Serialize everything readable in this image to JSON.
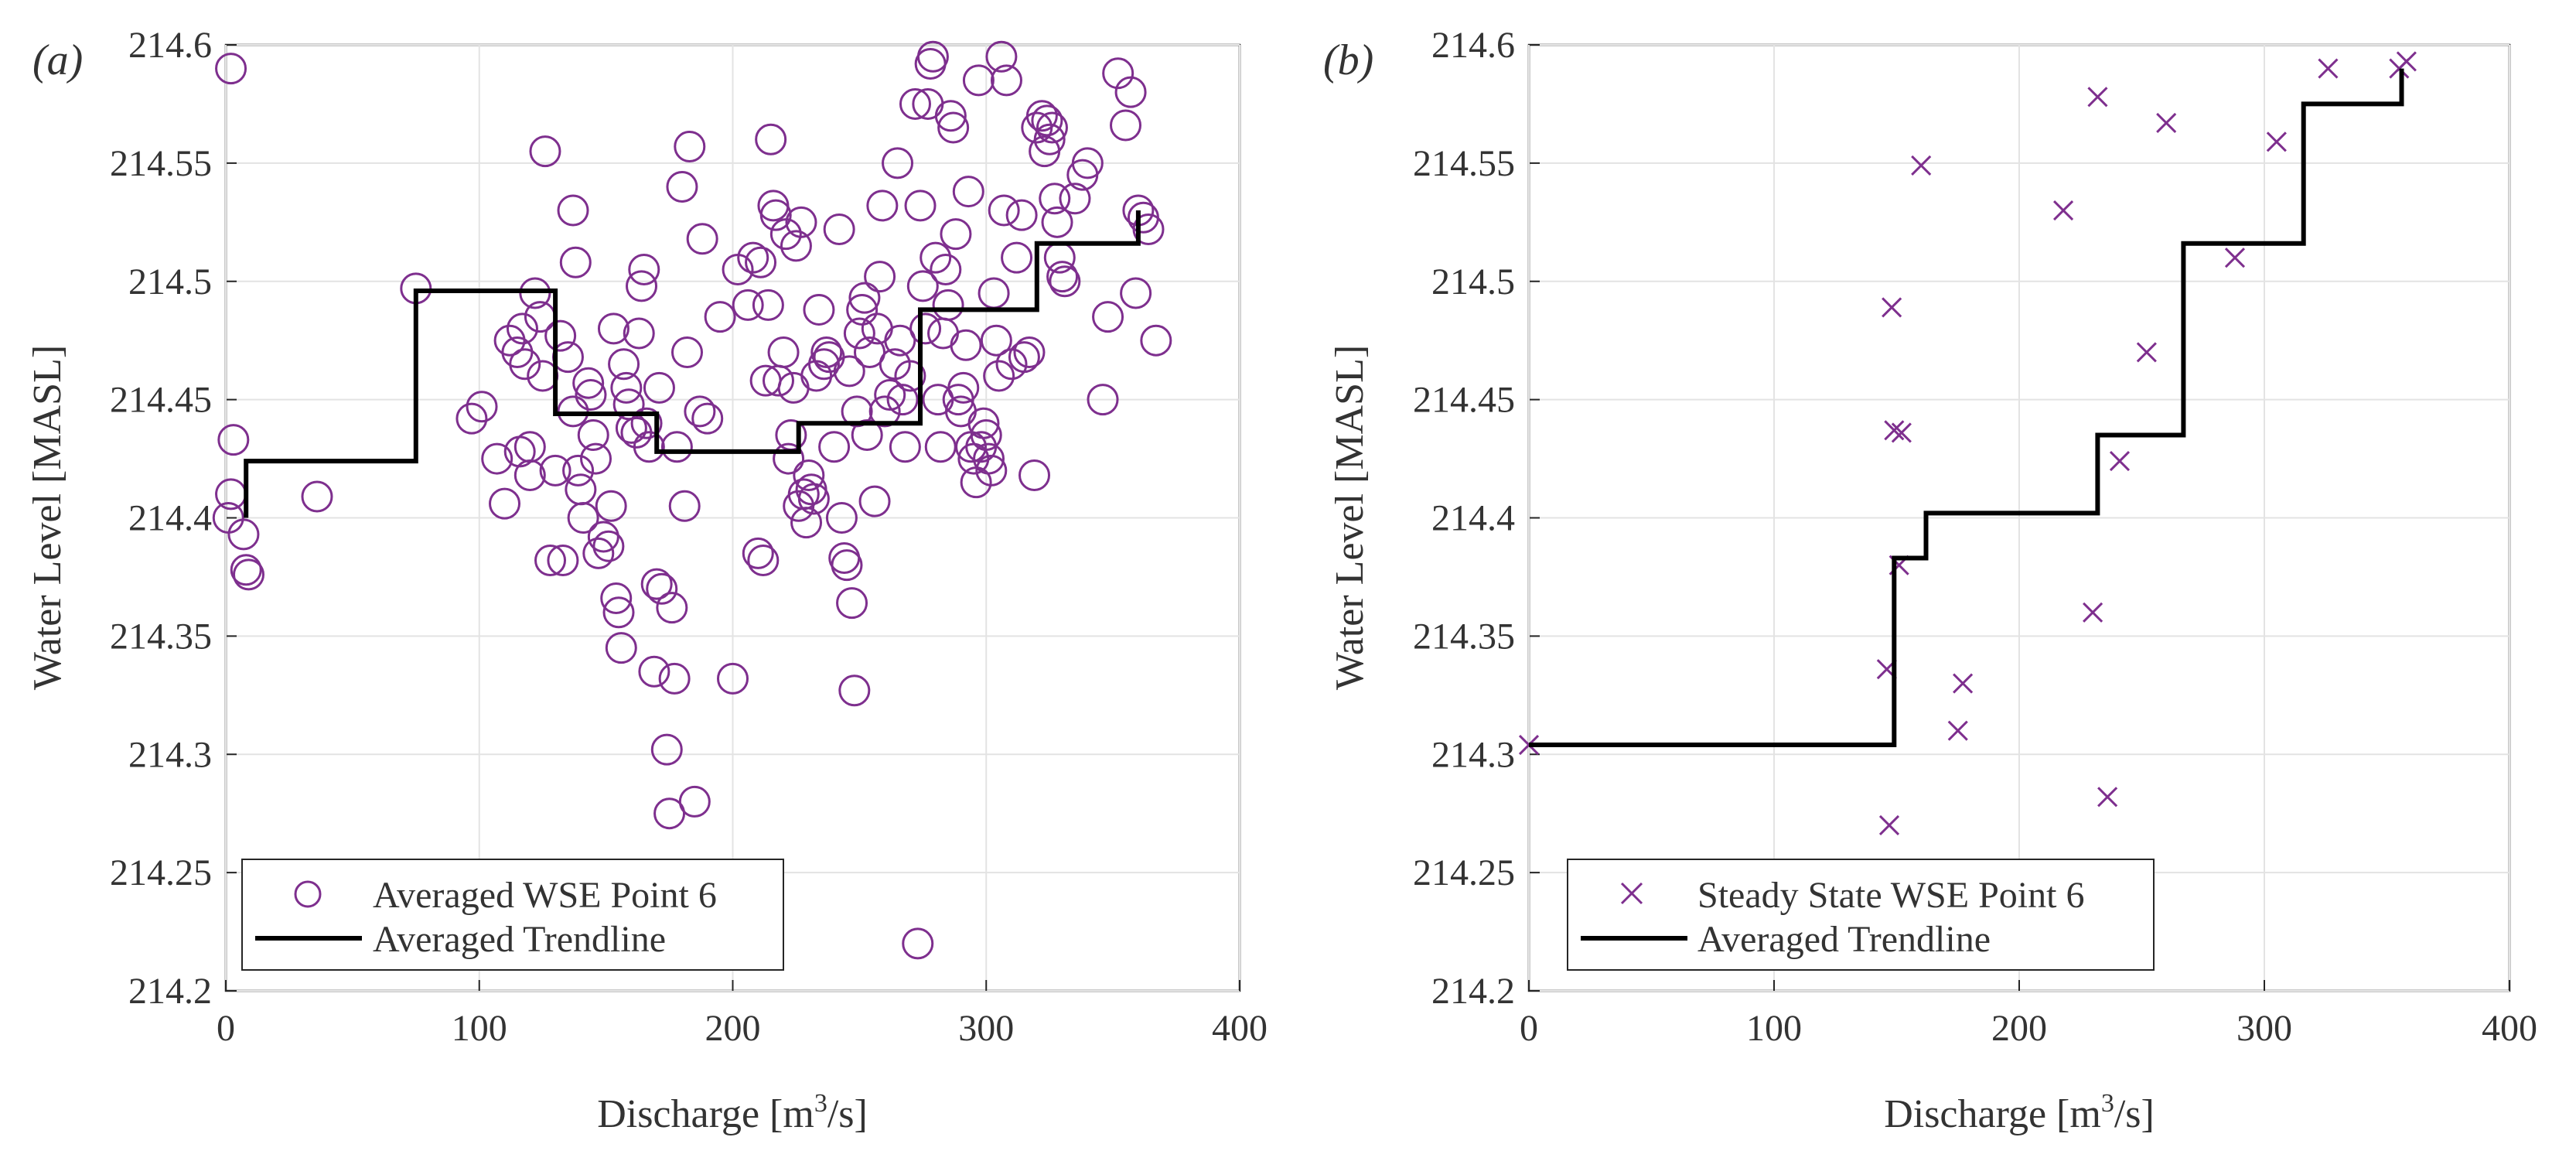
{
  "figure": {
    "panel_a_label": "(a)",
    "panel_b_label": "(b)"
  },
  "chart_data": [
    {
      "type": "scatter",
      "panel": "(a)",
      "xlabel_main": "Discharge [m",
      "xlabel_sup": "3",
      "xlabel_end": "/s]",
      "ylabel": "Water Level [MASL]",
      "xlim": [
        0,
        400
      ],
      "ylim": [
        214.2,
        214.6
      ],
      "xticks": [
        "0",
        "100",
        "200",
        "300",
        "400"
      ],
      "yticks": [
        "214.2",
        "214.25",
        "214.3",
        "214.35",
        "214.4",
        "214.45",
        "214.5",
        "214.55",
        "214.6"
      ],
      "grid": true,
      "legend_position": "bottom-left",
      "marker_color": "#7E2F8E",
      "line_color": "#000000",
      "series": [
        {
          "name": "Averaged WSE Point 6",
          "marker": "circle",
          "points": [
            [
              2,
              214.59
            ],
            [
              2,
              214.41
            ],
            [
              3,
              214.433
            ],
            [
              1,
              214.4
            ],
            [
              7,
              214.393
            ],
            [
              8,
              214.378
            ],
            [
              9,
              214.376
            ],
            [
              36,
              214.409
            ],
            [
              75,
              214.497
            ],
            [
              97,
              214.442
            ],
            [
              101,
              214.447
            ],
            [
              107,
              214.425
            ],
            [
              110,
              214.406
            ],
            [
              112,
              214.475
            ],
            [
              115,
              214.47
            ],
            [
              116,
              214.428
            ],
            [
              117,
              214.48
            ],
            [
              118,
              214.465
            ],
            [
              120,
              214.43
            ],
            [
              120,
              214.418
            ],
            [
              122,
              214.495
            ],
            [
              124,
              214.485
            ],
            [
              125,
              214.46
            ],
            [
              126,
              214.555
            ],
            [
              128,
              214.382
            ],
            [
              130,
              214.42
            ],
            [
              132,
              214.477
            ],
            [
              133,
              214.382
            ],
            [
              135,
              214.468
            ],
            [
              137,
              214.445
            ],
            [
              137,
              214.53
            ],
            [
              138,
              214.508
            ],
            [
              139,
              214.42
            ],
            [
              140,
              214.412
            ],
            [
              141,
              214.4
            ],
            [
              143,
              214.457
            ],
            [
              144,
              214.452
            ],
            [
              145,
              214.435
            ],
            [
              146,
              214.425
            ],
            [
              147,
              214.385
            ],
            [
              149,
              214.392
            ],
            [
              151,
              214.388
            ],
            [
              152,
              214.405
            ],
            [
              153,
              214.48
            ],
            [
              154,
              214.366
            ],
            [
              155,
              214.36
            ],
            [
              156,
              214.345
            ],
            [
              157,
              214.465
            ],
            [
              158,
              214.455
            ],
            [
              159,
              214.448
            ],
            [
              160,
              214.438
            ],
            [
              162,
              214.436
            ],
            [
              163,
              214.478
            ],
            [
              164,
              214.498
            ],
            [
              165,
              214.505
            ],
            [
              166,
              214.44
            ],
            [
              167,
              214.43
            ],
            [
              169,
              214.335
            ],
            [
              170,
              214.372
            ],
            [
              171,
              214.455
            ],
            [
              172,
              214.37
            ],
            [
              174,
              214.302
            ],
            [
              175,
              214.275
            ],
            [
              176,
              214.362
            ],
            [
              177,
              214.332
            ],
            [
              178,
              214.43
            ],
            [
              180,
              214.54
            ],
            [
              181,
              214.405
            ],
            [
              182,
              214.47
            ],
            [
              183,
              214.557
            ],
            [
              185,
              214.28
            ],
            [
              187,
              214.445
            ],
            [
              188,
              214.518
            ],
            [
              190,
              214.442
            ],
            [
              195,
              214.485
            ],
            [
              200,
              214.332
            ],
            [
              202,
              214.505
            ],
            [
              206,
              214.49
            ],
            [
              208,
              214.51
            ],
            [
              210,
              214.385
            ],
            [
              211,
              214.508
            ],
            [
              212,
              214.382
            ],
            [
              213,
              214.458
            ],
            [
              214,
              214.49
            ],
            [
              215,
              214.56
            ],
            [
              216,
              214.532
            ],
            [
              217,
              214.528
            ],
            [
              218,
              214.458
            ],
            [
              220,
              214.47
            ],
            [
              221,
              214.52
            ],
            [
              222,
              214.425
            ],
            [
              223,
              214.435
            ],
            [
              224,
              214.455
            ],
            [
              225,
              214.515
            ],
            [
              226,
              214.405
            ],
            [
              227,
              214.525
            ],
            [
              228,
              214.41
            ],
            [
              229,
              214.398
            ],
            [
              230,
              214.418
            ],
            [
              231,
              214.412
            ],
            [
              232,
              214.408
            ],
            [
              233,
              214.46
            ],
            [
              234,
              214.488
            ],
            [
              236,
              214.465
            ],
            [
              237,
              214.47
            ],
            [
              238,
              214.468
            ],
            [
              240,
              214.43
            ],
            [
              242,
              214.522
            ],
            [
              243,
              214.4
            ],
            [
              244,
              214.383
            ],
            [
              245,
              214.38
            ],
            [
              246,
              214.462
            ],
            [
              247,
              214.364
            ],
            [
              248,
              214.327
            ],
            [
              249,
              214.445
            ],
            [
              250,
              214.478
            ],
            [
              251,
              214.488
            ],
            [
              252,
              214.493
            ],
            [
              253,
              214.435
            ],
            [
              254,
              214.47
            ],
            [
              256,
              214.407
            ],
            [
              257,
              214.48
            ],
            [
              258,
              214.502
            ],
            [
              259,
              214.532
            ],
            [
              260,
              214.445
            ],
            [
              262,
              214.452
            ],
            [
              264,
              214.465
            ],
            [
              265,
              214.55
            ],
            [
              266,
              214.475
            ],
            [
              267,
              214.45
            ],
            [
              268,
              214.43
            ],
            [
              270,
              214.46
            ],
            [
              272,
              214.575
            ],
            [
              273,
              214.22
            ],
            [
              274,
              214.532
            ],
            [
              275,
              214.498
            ],
            [
              276,
              214.48
            ],
            [
              277,
              214.575
            ],
            [
              278,
              214.592
            ],
            [
              279,
              214.595
            ],
            [
              280,
              214.51
            ],
            [
              281,
              214.45
            ],
            [
              282,
              214.43
            ],
            [
              283,
              214.478
            ],
            [
              284,
              214.505
            ],
            [
              285,
              214.49
            ],
            [
              286,
              214.57
            ],
            [
              287,
              214.565
            ],
            [
              288,
              214.52
            ],
            [
              289,
              214.45
            ],
            [
              290,
              214.445
            ],
            [
              291,
              214.455
            ],
            [
              292,
              214.473
            ],
            [
              293,
              214.538
            ],
            [
              294,
              214.43
            ],
            [
              295,
              214.425
            ],
            [
              296,
              214.415
            ],
            [
              297,
              214.585
            ],
            [
              298,
              214.43
            ],
            [
              299,
              214.44
            ],
            [
              300,
              214.435
            ],
            [
              301,
              214.425
            ],
            [
              302,
              214.42
            ],
            [
              303,
              214.495
            ],
            [
              304,
              214.475
            ],
            [
              305,
              214.46
            ],
            [
              306,
              214.595
            ],
            [
              307,
              214.53
            ],
            [
              308,
              214.585
            ],
            [
              310,
              214.465
            ],
            [
              312,
              214.51
            ],
            [
              314,
              214.528
            ],
            [
              315,
              214.468
            ],
            [
              317,
              214.47
            ],
            [
              319,
              214.418
            ],
            [
              320,
              214.565
            ],
            [
              322,
              214.57
            ],
            [
              323,
              214.555
            ],
            [
              324,
              214.568
            ],
            [
              325,
              214.56
            ],
            [
              326,
              214.565
            ],
            [
              327,
              214.535
            ],
            [
              328,
              214.525
            ],
            [
              329,
              214.51
            ],
            [
              330,
              214.502
            ],
            [
              331,
              214.5
            ],
            [
              335,
              214.535
            ],
            [
              338,
              214.545
            ],
            [
              340,
              214.55
            ],
            [
              346,
              214.45
            ],
            [
              348,
              214.485
            ],
            [
              352,
              214.588
            ],
            [
              355,
              214.566
            ],
            [
              357,
              214.58
            ],
            [
              359,
              214.495
            ],
            [
              360,
              214.53
            ],
            [
              362,
              214.527
            ],
            [
              364,
              214.522
            ],
            [
              367,
              214.475
            ]
          ]
        },
        {
          "name": "Averaged Trendline",
          "marker": "line",
          "points": [
            [
              8,
              214.4
            ],
            [
              8,
              214.424
            ],
            [
              75,
              214.424
            ],
            [
              75,
              214.496
            ],
            [
              130,
              214.496
            ],
            [
              130,
              214.444
            ],
            [
              170,
              214.444
            ],
            [
              170,
              214.428
            ],
            [
              226,
              214.428
            ],
            [
              226,
              214.44
            ],
            [
              274,
              214.44
            ],
            [
              274,
              214.488
            ],
            [
              320,
              214.488
            ],
            [
              320,
              214.516
            ],
            [
              360,
              214.516
            ],
            [
              360,
              214.53
            ]
          ]
        }
      ]
    },
    {
      "type": "scatter",
      "panel": "(b)",
      "xlabel_main": "Discharge [m",
      "xlabel_sup": "3",
      "xlabel_end": "/s]",
      "ylabel": "Water Level [MASL]",
      "xlim": [
        0,
        400
      ],
      "ylim": [
        214.2,
        214.6
      ],
      "xticks": [
        "0",
        "100",
        "200",
        "300",
        "400"
      ],
      "yticks": [
        "214.2",
        "214.25",
        "214.3",
        "214.35",
        "214.4",
        "214.45",
        "214.5",
        "214.55",
        "214.6"
      ],
      "grid": true,
      "legend_position": "bottom-left",
      "marker_color": "#7E2F8E",
      "line_color": "#000000",
      "series": [
        {
          "name": "Steady State WSE Point 6",
          "marker": "x",
          "points": [
            [
              0,
              214.304
            ],
            [
              146,
              214.336
            ],
            [
              147,
              214.27
            ],
            [
              148,
              214.489
            ],
            [
              149,
              214.437
            ],
            [
              151,
              214.38
            ],
            [
              152,
              214.436
            ],
            [
              160,
              214.549
            ],
            [
              175,
              214.31
            ],
            [
              177,
              214.33
            ],
            [
              218,
              214.53
            ],
            [
              230,
              214.36
            ],
            [
              232,
              214.578
            ],
            [
              236,
              214.282
            ],
            [
              241,
              214.424
            ],
            [
              252,
              214.47
            ],
            [
              260,
              214.567
            ],
            [
              288,
              214.51
            ],
            [
              305,
              214.559
            ],
            [
              326,
              214.59
            ],
            [
              355,
              214.59
            ],
            [
              358,
              214.593
            ]
          ]
        },
        {
          "name": "Averaged Trendline",
          "marker": "line",
          "points": [
            [
              0,
              214.304
            ],
            [
              149,
              214.304
            ],
            [
              149,
              214.383
            ],
            [
              162,
              214.383
            ],
            [
              162,
              214.402
            ],
            [
              232,
              214.402
            ],
            [
              232,
              214.435
            ],
            [
              267,
              214.435
            ],
            [
              267,
              214.516
            ],
            [
              316,
              214.516
            ],
            [
              316,
              214.575
            ],
            [
              356,
              214.575
            ],
            [
              356,
              214.59
            ]
          ]
        }
      ]
    }
  ]
}
